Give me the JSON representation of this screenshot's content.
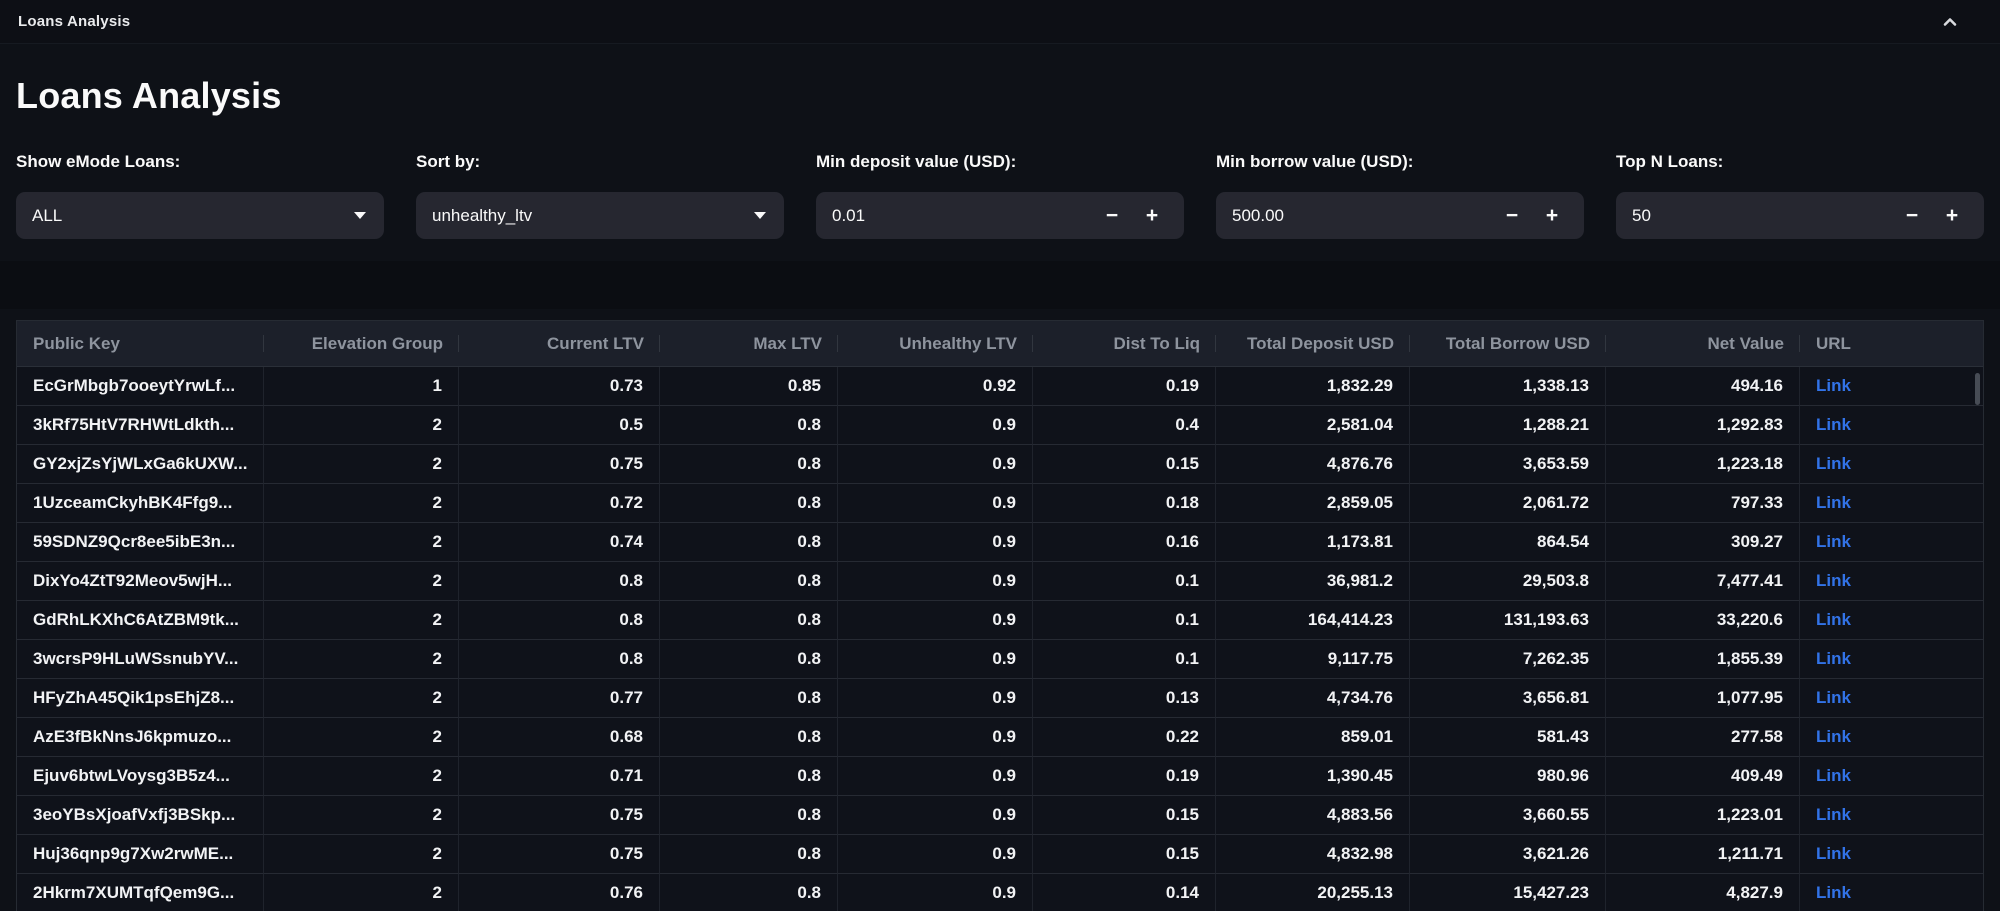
{
  "topbar": {
    "title": "Loans Analysis"
  },
  "page": {
    "heading": "Loans Analysis"
  },
  "controls": {
    "minus_label": "−",
    "plus_label": "+"
  },
  "filters": [
    {
      "label": "Show eMode Loans:",
      "type": "select",
      "value": "ALL"
    },
    {
      "label": "Sort by:",
      "type": "select",
      "value": "unhealthy_ltv"
    },
    {
      "label": "Min deposit value (USD):",
      "type": "number",
      "value": "0.01"
    },
    {
      "label": "Min borrow value (USD):",
      "type": "number",
      "value": "500.00"
    },
    {
      "label": "Top N Loans:",
      "type": "number",
      "value": "50"
    }
  ],
  "table": {
    "columns": [
      {
        "key": "public_key",
        "label": "Public Key",
        "align": "left"
      },
      {
        "key": "elevation_group",
        "label": "Elevation Group",
        "align": "right"
      },
      {
        "key": "current_ltv",
        "label": "Current LTV",
        "align": "right"
      },
      {
        "key": "max_ltv",
        "label": "Max LTV",
        "align": "right"
      },
      {
        "key": "unhealthy_ltv",
        "label": "Unhealthy LTV",
        "align": "right"
      },
      {
        "key": "dist_to_liq",
        "label": "Dist To Liq",
        "align": "right"
      },
      {
        "key": "total_deposit_usd",
        "label": "Total Deposit USD",
        "align": "right"
      },
      {
        "key": "total_borrow_usd",
        "label": "Total Borrow USD",
        "align": "right"
      },
      {
        "key": "net_value",
        "label": "Net Value",
        "align": "right"
      },
      {
        "key": "url",
        "label": "URL",
        "align": "left"
      }
    ],
    "rows": [
      [
        "EcGrMbgb7ooeytYrwLf...",
        "1",
        "0.73",
        "0.85",
        "0.92",
        "0.19",
        "1,832.29",
        "1,338.13",
        "494.16",
        "Link"
      ],
      [
        "3kRf75HtV7RHWtLdkth...",
        "2",
        "0.5",
        "0.8",
        "0.9",
        "0.4",
        "2,581.04",
        "1,288.21",
        "1,292.83",
        "Link"
      ],
      [
        "GY2xjZsYjWLxGa6kUXW...",
        "2",
        "0.75",
        "0.8",
        "0.9",
        "0.15",
        "4,876.76",
        "3,653.59",
        "1,223.18",
        "Link"
      ],
      [
        "1UzceamCkyhBK4Ffg9...",
        "2",
        "0.72",
        "0.8",
        "0.9",
        "0.18",
        "2,859.05",
        "2,061.72",
        "797.33",
        "Link"
      ],
      [
        "59SDNZ9Qcr8ee5ibE3n...",
        "2",
        "0.74",
        "0.8",
        "0.9",
        "0.16",
        "1,173.81",
        "864.54",
        "309.27",
        "Link"
      ],
      [
        "DixYo4ZtT92Meov5wjH...",
        "2",
        "0.8",
        "0.8",
        "0.9",
        "0.1",
        "36,981.2",
        "29,503.8",
        "7,477.41",
        "Link"
      ],
      [
        "GdRhLKXhC6AtZBM9tk...",
        "2",
        "0.8",
        "0.8",
        "0.9",
        "0.1",
        "164,414.23",
        "131,193.63",
        "33,220.6",
        "Link"
      ],
      [
        "3wcrsP9HLuWSsnubYV...",
        "2",
        "0.8",
        "0.8",
        "0.9",
        "0.1",
        "9,117.75",
        "7,262.35",
        "1,855.39",
        "Link"
      ],
      [
        "HFyZhA45Qik1psEhjZ8...",
        "2",
        "0.77",
        "0.8",
        "0.9",
        "0.13",
        "4,734.76",
        "3,656.81",
        "1,077.95",
        "Link"
      ],
      [
        "AzE3fBkNnsJ6kpmuzo...",
        "2",
        "0.68",
        "0.8",
        "0.9",
        "0.22",
        "859.01",
        "581.43",
        "277.58",
        "Link"
      ],
      [
        "Ejuv6btwLVoysg3B5z4...",
        "2",
        "0.71",
        "0.8",
        "0.9",
        "0.19",
        "1,390.45",
        "980.96",
        "409.49",
        "Link"
      ],
      [
        "3eoYBsXjoafVxfj3BSkp...",
        "2",
        "0.75",
        "0.8",
        "0.9",
        "0.15",
        "4,883.56",
        "3,660.55",
        "1,223.01",
        "Link"
      ],
      [
        "Huj36qnp9g7Xw2rwME...",
        "2",
        "0.75",
        "0.8",
        "0.9",
        "0.15",
        "4,832.98",
        "3,621.26",
        "1,211.71",
        "Link"
      ],
      [
        "2Hkrm7XUMTqfQem9G...",
        "2",
        "0.76",
        "0.8",
        "0.9",
        "0.14",
        "20,255.13",
        "15,427.23",
        "4,827.9",
        "Link"
      ]
    ]
  },
  "colors": {
    "background": "#0e1117",
    "widget_background": "#262730",
    "table_header_background": "#1c202a",
    "header_text": "#8e949e",
    "link": "#3273e8"
  }
}
